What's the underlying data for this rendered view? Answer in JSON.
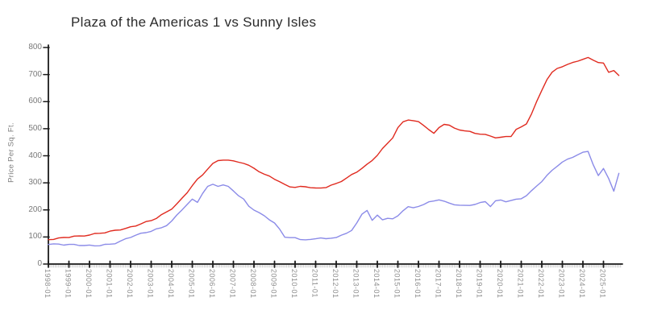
{
  "chart": {
    "title": "Plaza of the Americas 1 vs Sunny Isles",
    "ylabel": "Price Per Sq. Ft."
  },
  "chart_data": {
    "type": "line",
    "title": "Plaza of the Americas 1 vs Sunny Isles",
    "xlabel": "",
    "ylabel": "Price Per Sq. Ft.",
    "style": "xkcd-handdrawn",
    "grid": false,
    "legend": "none",
    "ylim": [
      0,
      800
    ],
    "yticks": [
      0,
      100,
      200,
      300,
      400,
      500,
      600,
      700,
      800
    ],
    "x_tick_labels": [
      "1998-01",
      "1999-01",
      "2000-01",
      "2001-01",
      "2002-01",
      "2003-01",
      "2004-01",
      "2005-01",
      "2006-01",
      "2007-01",
      "2008-01",
      "2009-01",
      "2010-01",
      "2011-01",
      "2012-01",
      "2013-01",
      "2014-01",
      "2015-01",
      "2016-01",
      "2017-01",
      "2018-01",
      "2019-01",
      "2020-01",
      "2021-01",
      "2022-01",
      "2023-01",
      "2024-01",
      "2025-01"
    ],
    "x_start": 1998.0,
    "x_step": 0.25,
    "axis_color": "#1a1a1a",
    "minor_tick_color": "#c9c9c9",
    "series": [
      {
        "name": "Plaza of the Americas 1",
        "color": "#e02a1f",
        "values": [
          90,
          93,
          95,
          97,
          100,
          103,
          102,
          105,
          108,
          111,
          114,
          117,
          120,
          124,
          128,
          131,
          136,
          142,
          149,
          155,
          161,
          170,
          181,
          192,
          205,
          222,
          242,
          265,
          290,
          312,
          330,
          352,
          370,
          382,
          386,
          383,
          380,
          378,
          372,
          363,
          355,
          342,
          330,
          325,
          315,
          303,
          293,
          287,
          283,
          285,
          287,
          283,
          279,
          281,
          284,
          290,
          297,
          307,
          317,
          329,
          341,
          354,
          367,
          383,
          403,
          425,
          446,
          468,
          503,
          524,
          534,
          530,
          524,
          513,
          498,
          481,
          504,
          518,
          512,
          501,
          497,
          492,
          488,
          484,
          481,
          477,
          473,
          468,
          467,
          470,
          473,
          497,
          505,
          519,
          556,
          598,
          642,
          683,
          707,
          722,
          731,
          737,
          743,
          751,
          757,
          761,
          754,
          746,
          741,
          708,
          717,
          696
        ]
      },
      {
        "name": "Sunny Isles",
        "color": "#8b8be8",
        "values": [
          74,
          73,
          73,
          72,
          72,
          71,
          70,
          69,
          68,
          68,
          69,
          71,
          73,
          77,
          84,
          92,
          100,
          107,
          112,
          117,
          122,
          128,
          134,
          144,
          158,
          180,
          202,
          220,
          238,
          229,
          262,
          285,
          295,
          289,
          291,
          286,
          272,
          252,
          238,
          215,
          200,
          188,
          179,
          165,
          150,
          128,
          101,
          97,
          96,
          92,
          90,
          89,
          94,
          98,
          92,
          95,
          100,
          106,
          112,
          126,
          152,
          182,
          199,
          163,
          179,
          163,
          171,
          166,
          177,
          199,
          212,
          206,
          214,
          221,
          228,
          233,
          239,
          231,
          224,
          221,
          217,
          215,
          218,
          221,
          225,
          231,
          214,
          232,
          236,
          232,
          234,
          238,
          243,
          253,
          269,
          289,
          306,
          326,
          346,
          363,
          376,
          386,
          396,
          404,
          411,
          417,
          368,
          325,
          353,
          318,
          268,
          334
        ]
      }
    ]
  }
}
